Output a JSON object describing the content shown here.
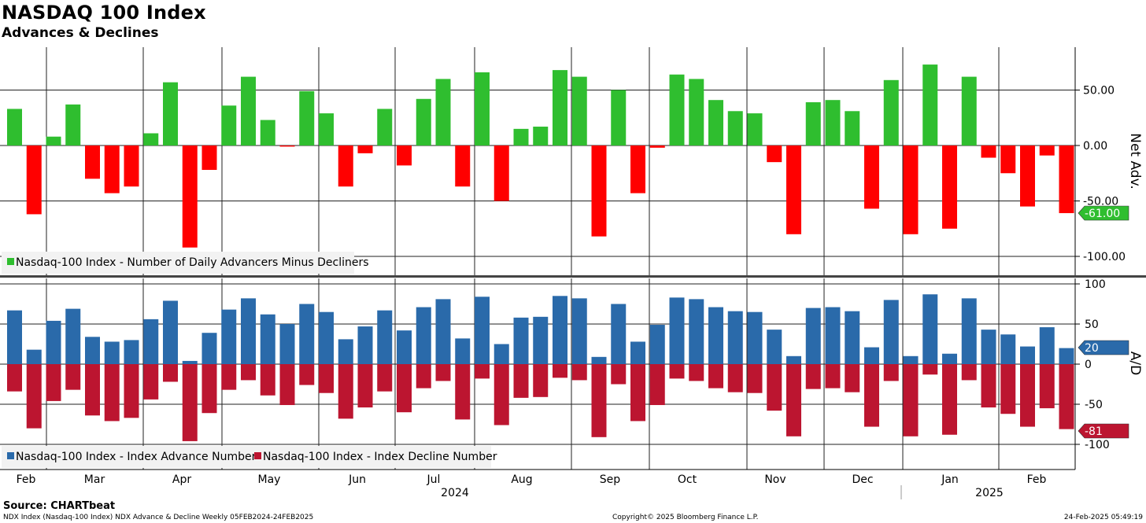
{
  "header": {
    "title": "NASDAQ 100 Index",
    "subtitle": "Advances & Declines"
  },
  "footer": {
    "source": "Source: CHARTbeat",
    "description": "NDX Index (Nasdaq-100 Index) NDX Advance & Decline  Weekly 05FEB2024-24FEB2025",
    "copyright": "Copyright© 2025 Bloomberg Finance L.P.",
    "timestamp": "24-Feb-2025 05:49:19"
  },
  "colors": {
    "net_positive": "#2fbe2f",
    "net_negative": "#ff0000",
    "advances": "#2a6aaa",
    "declines": "#bc1530",
    "grid": "#222222",
    "last_label_top": "#2fbe2f",
    "last_label_advance": "#2a6aaa",
    "last_label_decline": "#bc1530"
  },
  "x_axis": {
    "months": [
      "Feb",
      "Mar",
      "Apr",
      "May",
      "Jun",
      "Jul",
      "Aug",
      "Sep",
      "Oct",
      "Nov",
      "Dec",
      "Jan",
      "Feb"
    ],
    "years": [
      "2024",
      "2025"
    ]
  },
  "chart_data": [
    {
      "type": "bar",
      "title": "Net Adv.",
      "ylabel": "Net Adv.",
      "ylim": [
        -110,
        88
      ],
      "yticks": [
        "50.00",
        "0.00",
        "-50.00",
        "-100.00"
      ],
      "legend": [
        "Nasdaq-100 Index - Number of Daily Advancers Minus Decliners"
      ],
      "legend_position": "bottom-left",
      "last_value_label": "-61.00",
      "grid": true,
      "series": [
        {
          "name": "Nasdaq-100 Index - Number of Daily Advancers Minus Decliners",
          "values": [
            33,
            -62,
            8,
            37,
            -30,
            -43,
            -37,
            11,
            57,
            -92,
            -22,
            36,
            62,
            23,
            -1,
            49,
            29,
            -37,
            -7,
            33,
            -18,
            42,
            60,
            -37,
            66,
            -50,
            15,
            17,
            68,
            62,
            -82,
            50,
            -43,
            -2,
            64,
            60,
            41,
            31,
            29,
            -15,
            -80,
            39,
            41,
            31,
            -57,
            59,
            -80,
            73,
            -75,
            62,
            -11,
            -25,
            -55,
            -9,
            -61
          ]
        }
      ]
    },
    {
      "type": "bar",
      "title": "A/D",
      "ylabel": "A/D",
      "ylim": [
        -135,
        108
      ],
      "yticks": [
        "100",
        "50",
        "0",
        "-50",
        "-100"
      ],
      "legend": [
        "Nasdaq-100 Index - Index Advance Number",
        "Nasdaq-100 Index - Index Decline Number"
      ],
      "legend_position": "bottom-left",
      "last_value_labels": [
        "20",
        "-81"
      ],
      "grid": true,
      "series": [
        {
          "name": "Nasdaq-100 Index - Index Advance Number",
          "values": [
            67,
            18,
            54,
            69,
            34,
            28,
            30,
            56,
            79,
            4,
            39,
            68,
            82,
            62,
            50,
            75,
            65,
            31,
            47,
            67,
            42,
            71,
            81,
            32,
            84,
            25,
            58,
            59,
            85,
            82,
            9,
            75,
            28,
            49,
            83,
            81,
            71,
            66,
            65,
            43,
            10,
            70,
            71,
            66,
            21,
            80,
            10,
            87,
            13,
            82,
            43,
            37,
            22,
            46,
            20
          ]
        },
        {
          "name": "Nasdaq-100 Index - Index Decline Number",
          "values": [
            -34,
            -80,
            -46,
            -32,
            -64,
            -71,
            -67,
            -44,
            -22,
            -96,
            -61,
            -32,
            -20,
            -39,
            -51,
            -26,
            -36,
            -68,
            -54,
            -34,
            -60,
            -30,
            -21,
            -69,
            -18,
            -76,
            -42,
            -41,
            -17,
            -20,
            -91,
            -25,
            -71,
            -51,
            -18,
            -21,
            -30,
            -35,
            -36,
            -58,
            -90,
            -31,
            -30,
            -35,
            -78,
            -21,
            -90,
            -13,
            -88,
            -20,
            -54,
            -62,
            -78,
            -55,
            -81
          ]
        }
      ]
    }
  ]
}
